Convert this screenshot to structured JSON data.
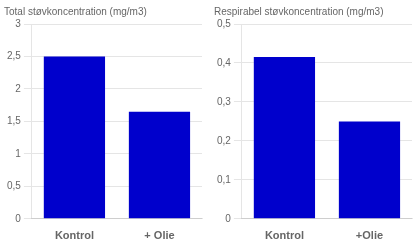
{
  "chart_data": [
    {
      "type": "bar",
      "title": "Total støvkoncentration (mg/m3)",
      "categories": [
        "Kontrol",
        "+ Olie"
      ],
      "values": [
        2.5,
        1.65
      ],
      "color": "#0000cc",
      "ylim": [
        0,
        3
      ],
      "yticks": [
        0,
        {
          "value": 0.5,
          "label": "0,5"
        },
        1,
        {
          "value": 1.5,
          "label": "1,5"
        },
        2,
        {
          "value": 2.5,
          "label": "2,5"
        },
        3
      ],
      "grid": true
    },
    {
      "type": "bar",
      "title": "Respirabel støvkoncentration (mg/m3)",
      "categories": [
        "Kontrol",
        "+Olie"
      ],
      "values": [
        0.415,
        0.25
      ],
      "color": "#0000cc",
      "ylim": [
        0,
        0.5
      ],
      "yticks": [
        0,
        {
          "value": 0.1,
          "label": "0,1"
        },
        {
          "value": 0.2,
          "label": "0,2"
        },
        {
          "value": 0.3,
          "label": "0,3"
        },
        {
          "value": 0.4,
          "label": "0,4"
        },
        {
          "value": 0.5,
          "label": "0,5"
        }
      ],
      "grid": true
    }
  ]
}
